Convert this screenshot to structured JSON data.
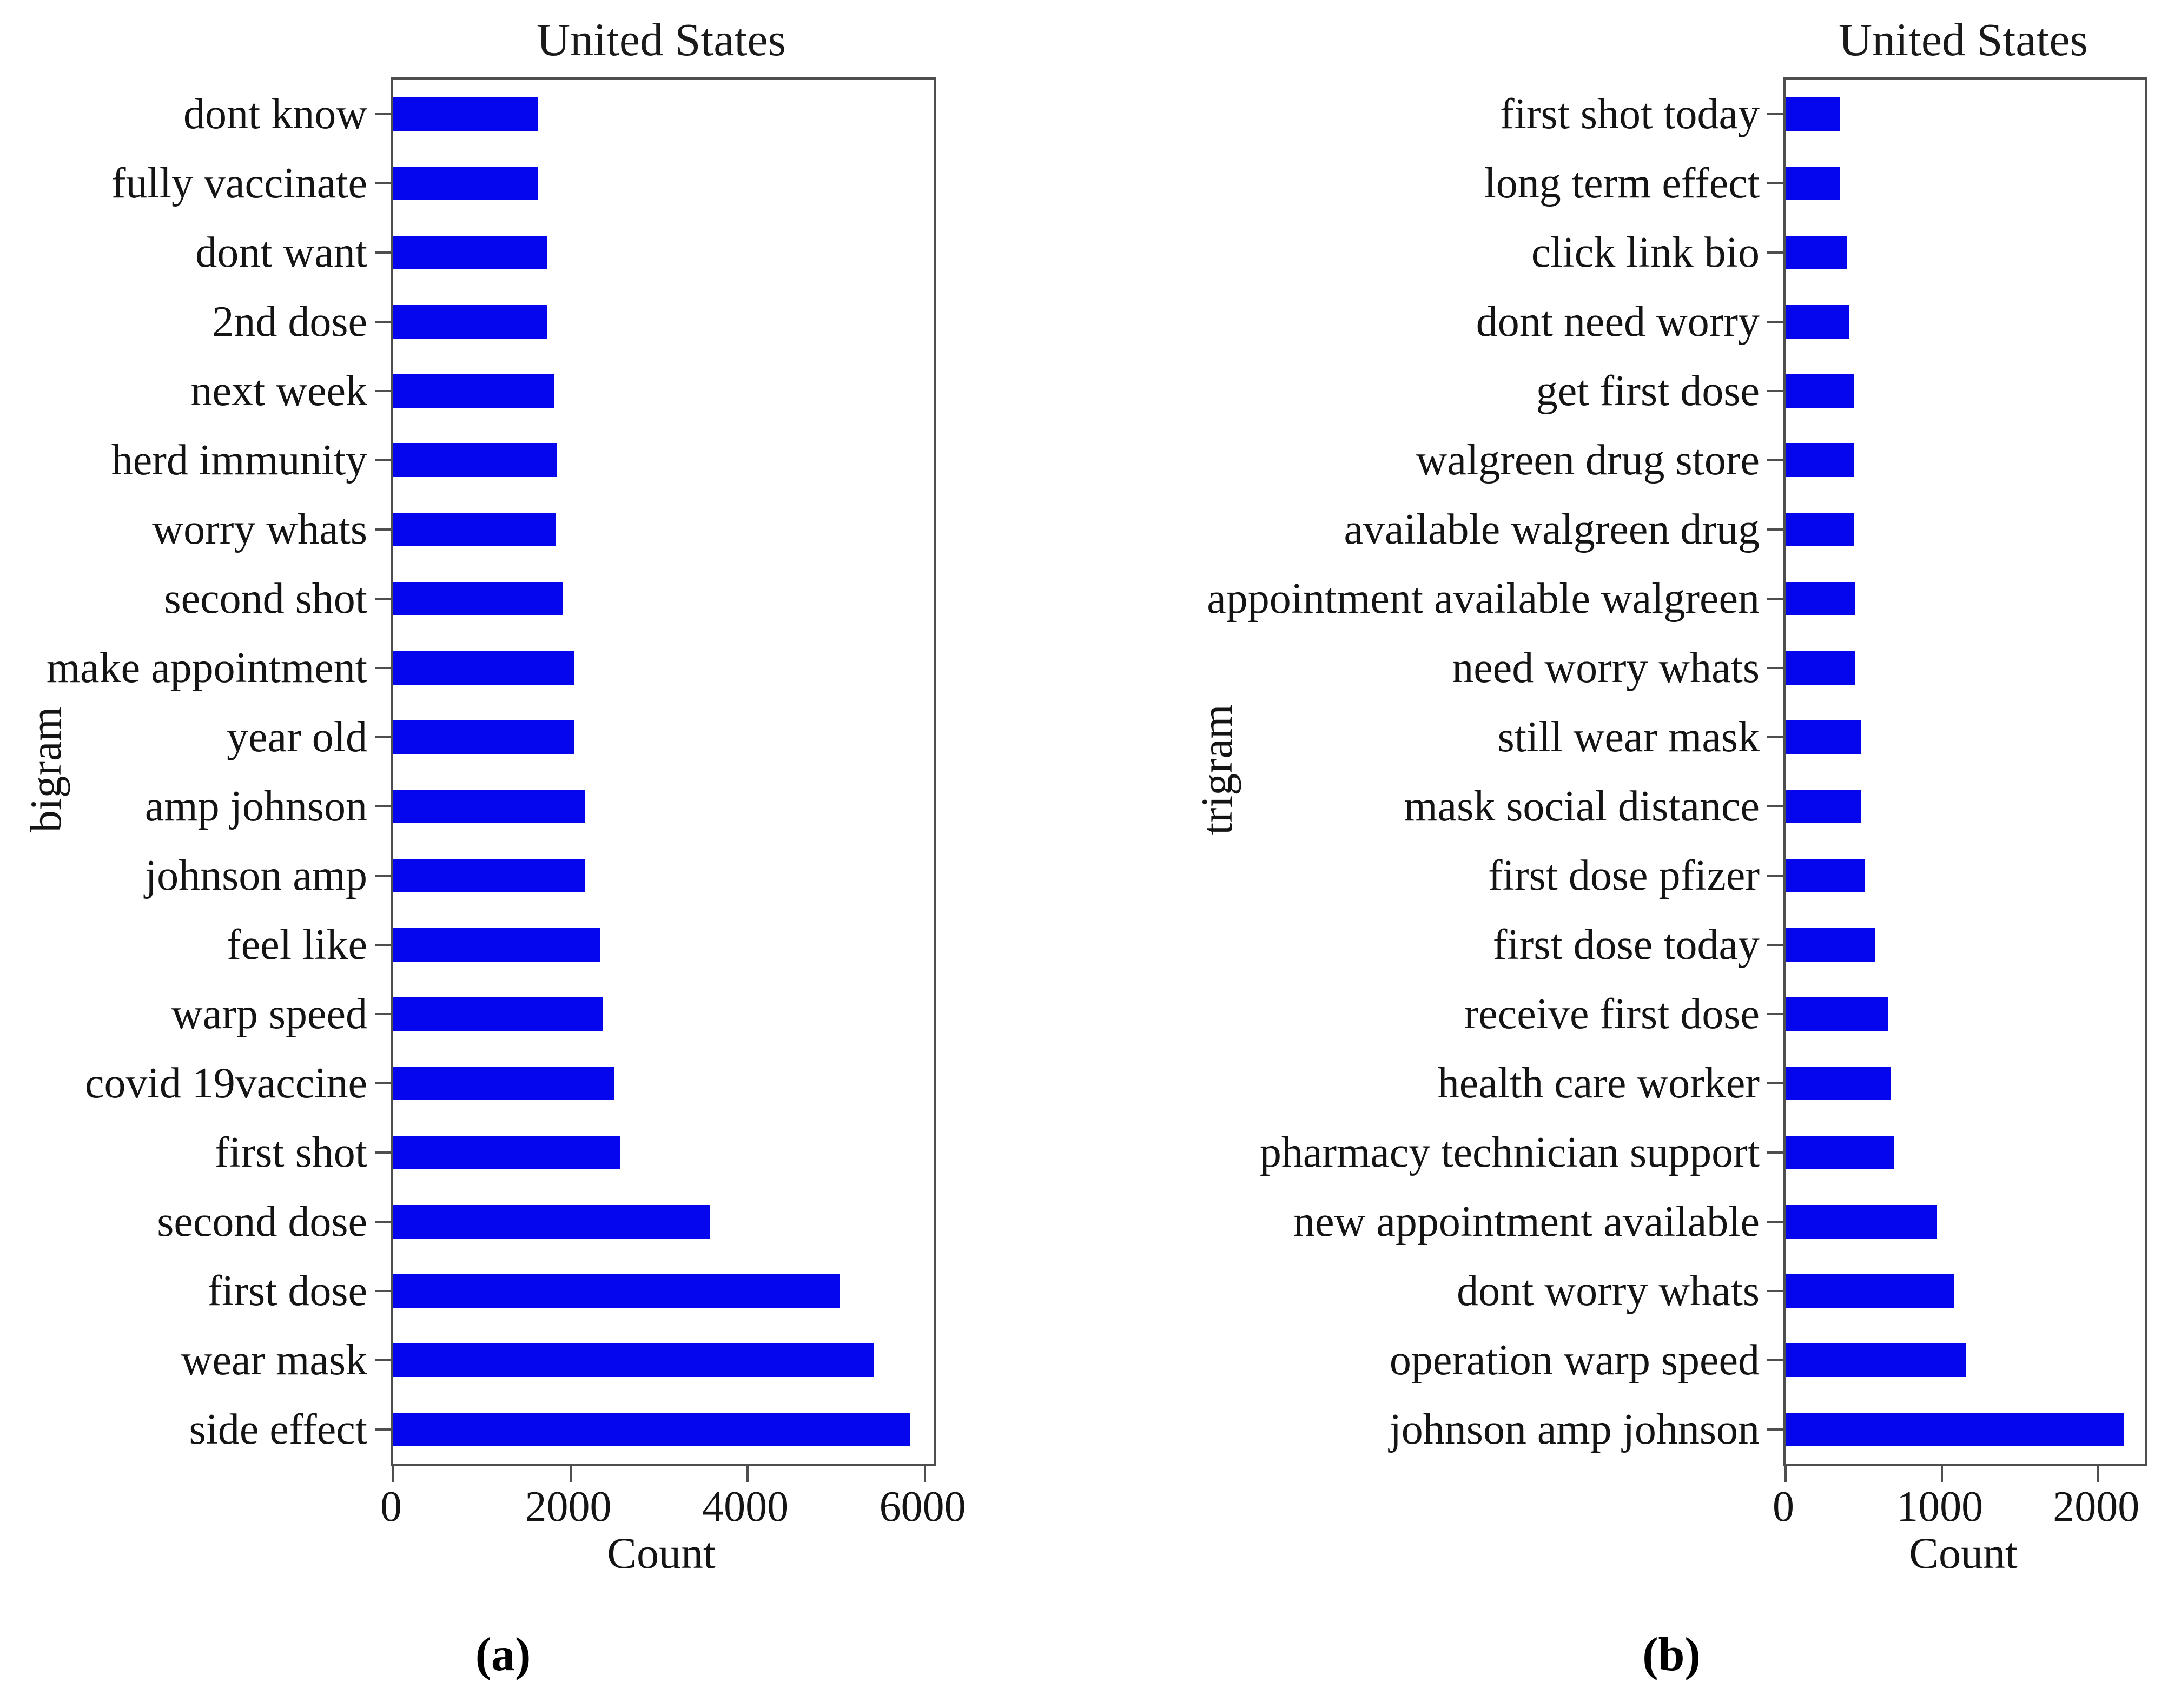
{
  "colors": {
    "bar": "#0505ee",
    "axis": "#4e4e4e",
    "text": "#141414",
    "background": "#ffffff"
  },
  "chart_data": [
    {
      "type": "bar",
      "orientation": "horizontal",
      "panel": "a",
      "title": "United States",
      "xlabel": "Count",
      "ylabel": "bigram",
      "caption": "(a)",
      "xlim": [
        0,
        6100
      ],
      "xticks": [
        0,
        2000,
        4000,
        6000
      ],
      "grid": false,
      "legend": "none",
      "bar_color": "#0505ee",
      "order": "top_to_bottom",
      "categories": [
        "dont know",
        "fully vaccinate",
        "dont want",
        "2nd dose",
        "next week",
        "herd immunity",
        "worry whats",
        "second shot",
        "make appointment",
        "year old",
        "amp johnson",
        "johnson amp",
        "feel like",
        "warp speed",
        "covid 19vaccine",
        "first shot",
        "second dose",
        "first dose",
        "wear mask",
        "side effect"
      ],
      "values": [
        1630,
        1630,
        1740,
        1740,
        1820,
        1845,
        1830,
        1910,
        2040,
        2040,
        2170,
        2170,
        2340,
        2370,
        2490,
        2560,
        3580,
        5040,
        5430,
        5840
      ]
    },
    {
      "type": "bar",
      "orientation": "horizontal",
      "panel": "b",
      "title": "United States",
      "xlabel": "Count",
      "ylabel": "trigram",
      "caption": "(b)",
      "xlim": [
        0,
        2300
      ],
      "xticks": [
        0,
        1000,
        2000
      ],
      "grid": false,
      "legend": "none",
      "bar_color": "#0505ee",
      "order": "top_to_bottom",
      "categories": [
        "first shot today",
        "long term effect",
        "click link bio",
        "dont need worry",
        "get first dose",
        "walgreen drug store",
        "available walgreen drug",
        "appointment available walgreen",
        "need worry whats",
        "still wear mask",
        "mask social distance",
        "first dose pfizer",
        "first dose today",
        "receive first dose",
        "health care worker",
        "pharmacy technician support",
        "new appointment available",
        "dont worry whats",
        "operation warp speed",
        "johnson amp johnson"
      ],
      "values": [
        345,
        345,
        395,
        405,
        435,
        440,
        440,
        445,
        445,
        485,
        485,
        510,
        575,
        655,
        675,
        690,
        970,
        1075,
        1150,
        2160
      ]
    }
  ]
}
